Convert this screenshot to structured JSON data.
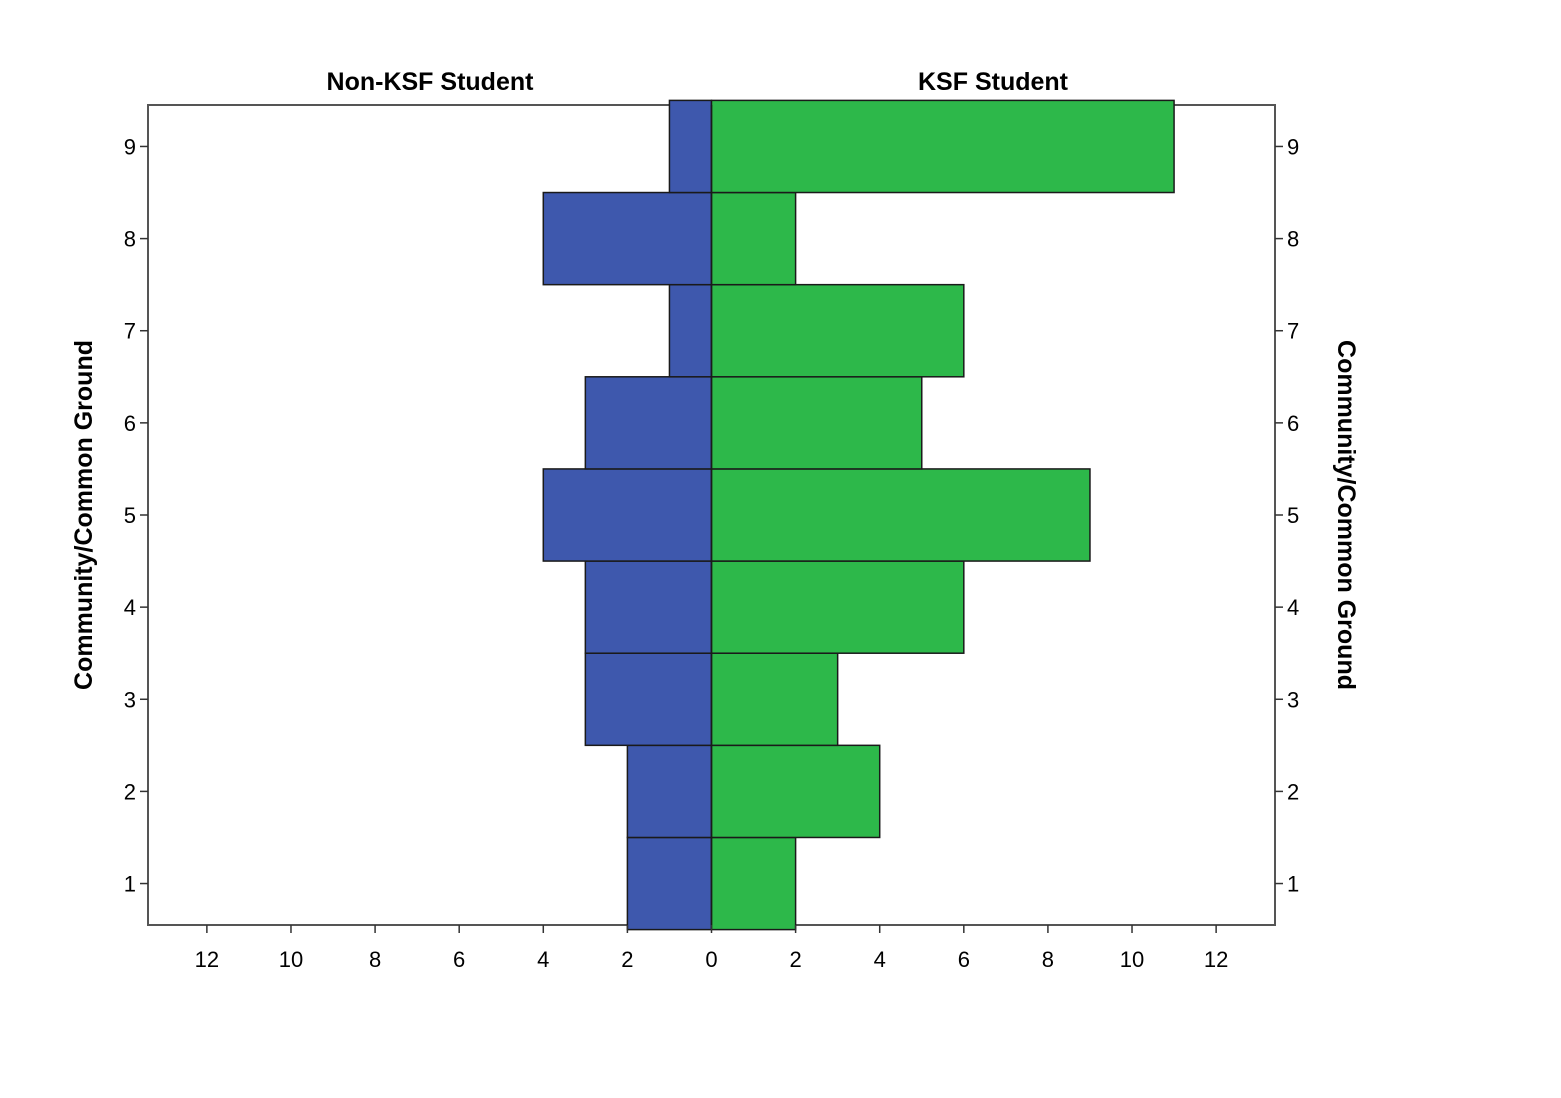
{
  "chart_data": {
    "type": "bar",
    "orientation": "horizontal",
    "layout": "back-to-back population pyramid",
    "panels": [
      {
        "name": "Non-KSF Student",
        "side": "left",
        "color": "#3e58ad"
      },
      {
        "name": "KSF Student",
        "side": "right",
        "color": "#2db84a"
      }
    ],
    "categories": [
      1,
      2,
      3,
      4,
      5,
      6,
      7,
      8,
      9
    ],
    "series": [
      {
        "name": "Non-KSF Student",
        "values": [
          2,
          2,
          3,
          3,
          4,
          3,
          1,
          4,
          1
        ]
      },
      {
        "name": "KSF Student",
        "values": [
          2,
          4,
          3,
          6,
          9,
          5,
          6,
          2,
          11
        ]
      }
    ],
    "ylabel_left": "Community/Common Ground",
    "ylabel_right": "Community/Common Ground",
    "y_ticks": [
      "1",
      "2",
      "3",
      "4",
      "5",
      "6",
      "7",
      "8",
      "9"
    ],
    "x_ticks_left": [
      "12",
      "10",
      "8",
      "6",
      "4",
      "2",
      "0"
    ],
    "x_ticks_right": [
      "2",
      "4",
      "6",
      "8",
      "10",
      "12"
    ],
    "xlim": [
      0,
      13.4
    ],
    "ylim": [
      0.55,
      9.45
    ],
    "grid": false,
    "legend": "none"
  }
}
